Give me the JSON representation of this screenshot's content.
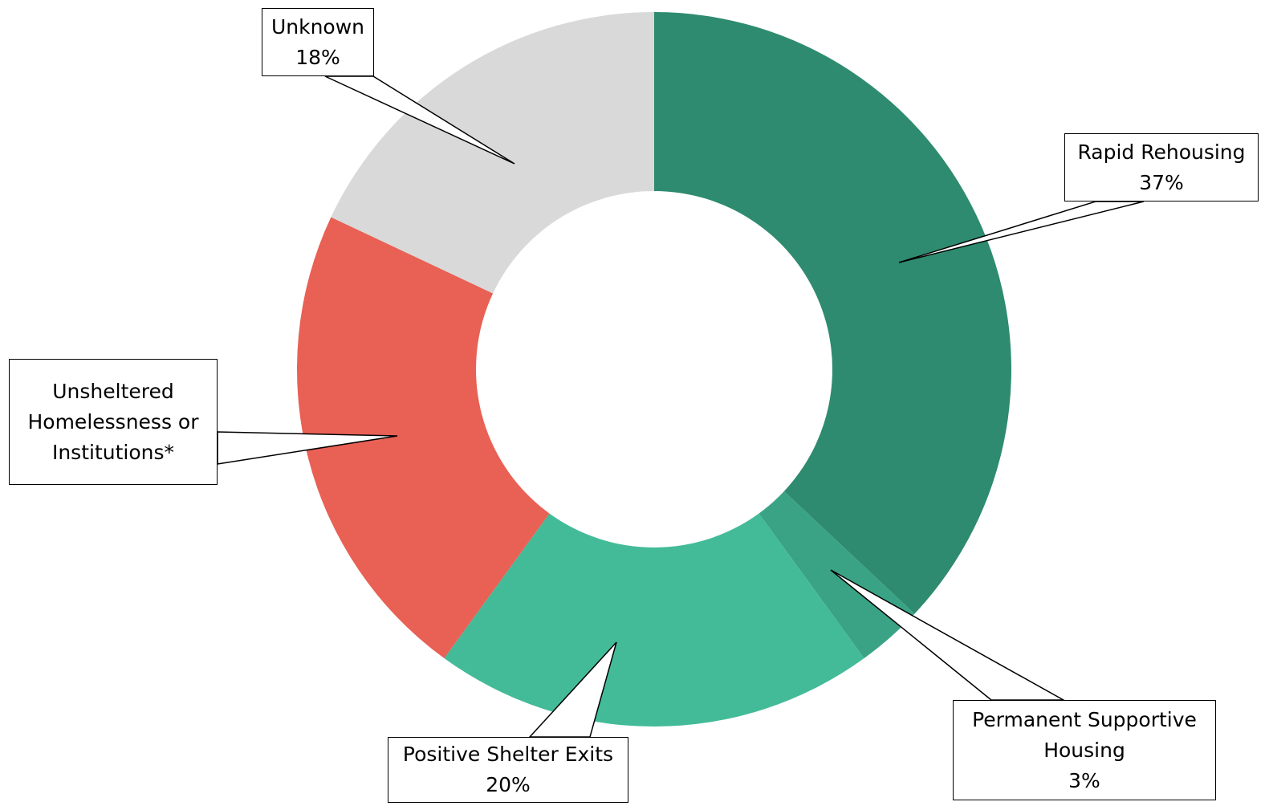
{
  "chart_data": {
    "type": "donut",
    "categories": [
      "Rapid Rehousing",
      "Permanent Supportive Housing",
      "Positive Shelter Exits",
      "Unsheltered Homelessness or Institutions*",
      "Unknown"
    ],
    "values": [
      37,
      3,
      20,
      22,
      18
    ],
    "value_labels": [
      "37%",
      "3%",
      "20%",
      null,
      "18%"
    ],
    "colors": [
      "#2e8b6f",
      "#3aa385",
      "#43bb98",
      "#e96055",
      "#d9d9d9"
    ]
  }
}
